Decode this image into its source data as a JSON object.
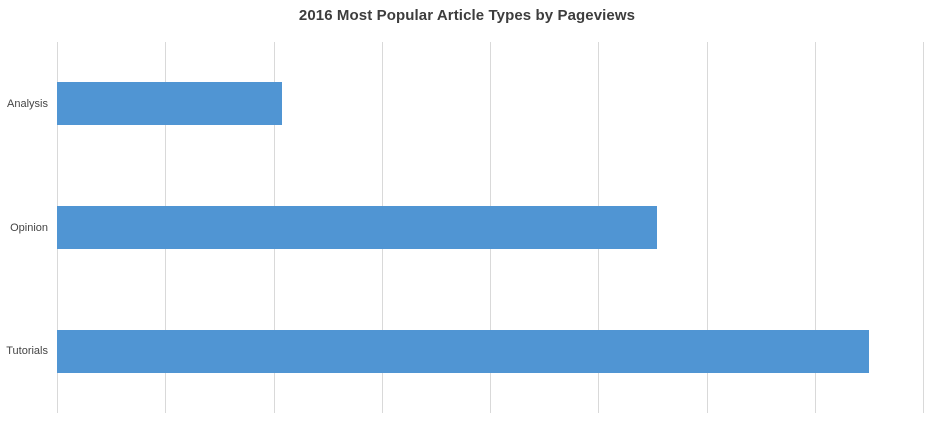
{
  "page": {
    "background_color": "#ffffff"
  },
  "chart_data": {
    "type": "bar",
    "orientation": "horizontal",
    "title": "2016 Most Popular Article Types by Pageviews",
    "categories": [
      "Analysis",
      "Opinion",
      "Tutorials"
    ],
    "values": [
      2.08,
      5.54,
      7.5
    ],
    "value_units": "gridline-intervals (no numeric tick labels visible on axis)",
    "xlabel": "",
    "ylabel": "",
    "xlim": [
      0,
      8
    ],
    "x_gridline_interval": 1,
    "gridlines": "vertical only",
    "gridline_count": 9,
    "legend": "none",
    "axis_tick_labels_visible": false,
    "bar_color": "#5095d3",
    "gridline_color": "#d9d9d9",
    "title_color": "#3d3d3d",
    "category_label_color": "#454545"
  }
}
